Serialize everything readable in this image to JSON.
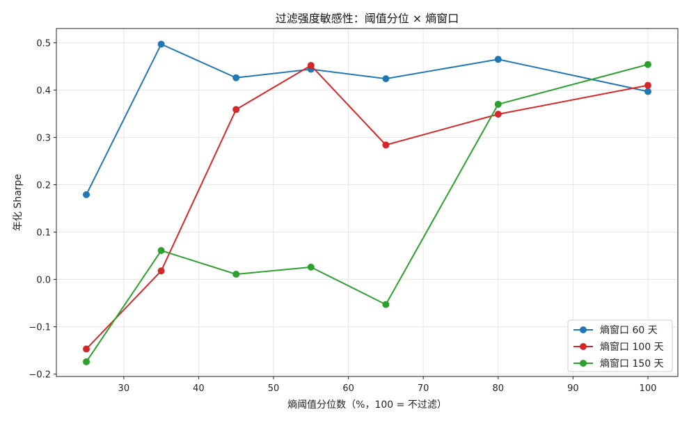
{
  "chart_data": {
    "type": "line",
    "title": "过滤强度敏感性：阈值分位 × 熵窗口",
    "xlabel": "熵阈值分位数（%，100 = 不过滤）",
    "ylabel": "年化 Sharpe",
    "x": [
      25,
      35,
      45,
      55,
      65,
      80,
      100
    ],
    "xlim": [
      21,
      104
    ],
    "ylim": [
      -0.205,
      0.53
    ],
    "xticks": [
      30,
      40,
      50,
      60,
      70,
      80,
      90,
      100
    ],
    "yticks": [
      -0.2,
      -0.1,
      0.0,
      0.1,
      0.2,
      0.3,
      0.4,
      0.5
    ],
    "ytick_labels": [
      "−0.2",
      "−0.1",
      "0.0",
      "0.1",
      "0.2",
      "0.3",
      "0.4",
      "0.5"
    ],
    "grid": true,
    "legend_position": "bottom-right",
    "series": [
      {
        "name": "熵窗口 60 天",
        "color": "#1f77b4",
        "values": [
          0.179,
          0.497,
          0.426,
          0.444,
          0.424,
          0.465,
          0.397
        ]
      },
      {
        "name": "熵窗口 100 天",
        "color": "#d62728",
        "values": [
          -0.147,
          0.018,
          0.359,
          0.452,
          0.284,
          0.349,
          0.41
        ]
      },
      {
        "name": "熵窗口 150 天",
        "color": "#2ca02c",
        "values": [
          -0.174,
          0.061,
          0.011,
          0.026,
          -0.053,
          0.37,
          0.454
        ]
      }
    ]
  }
}
